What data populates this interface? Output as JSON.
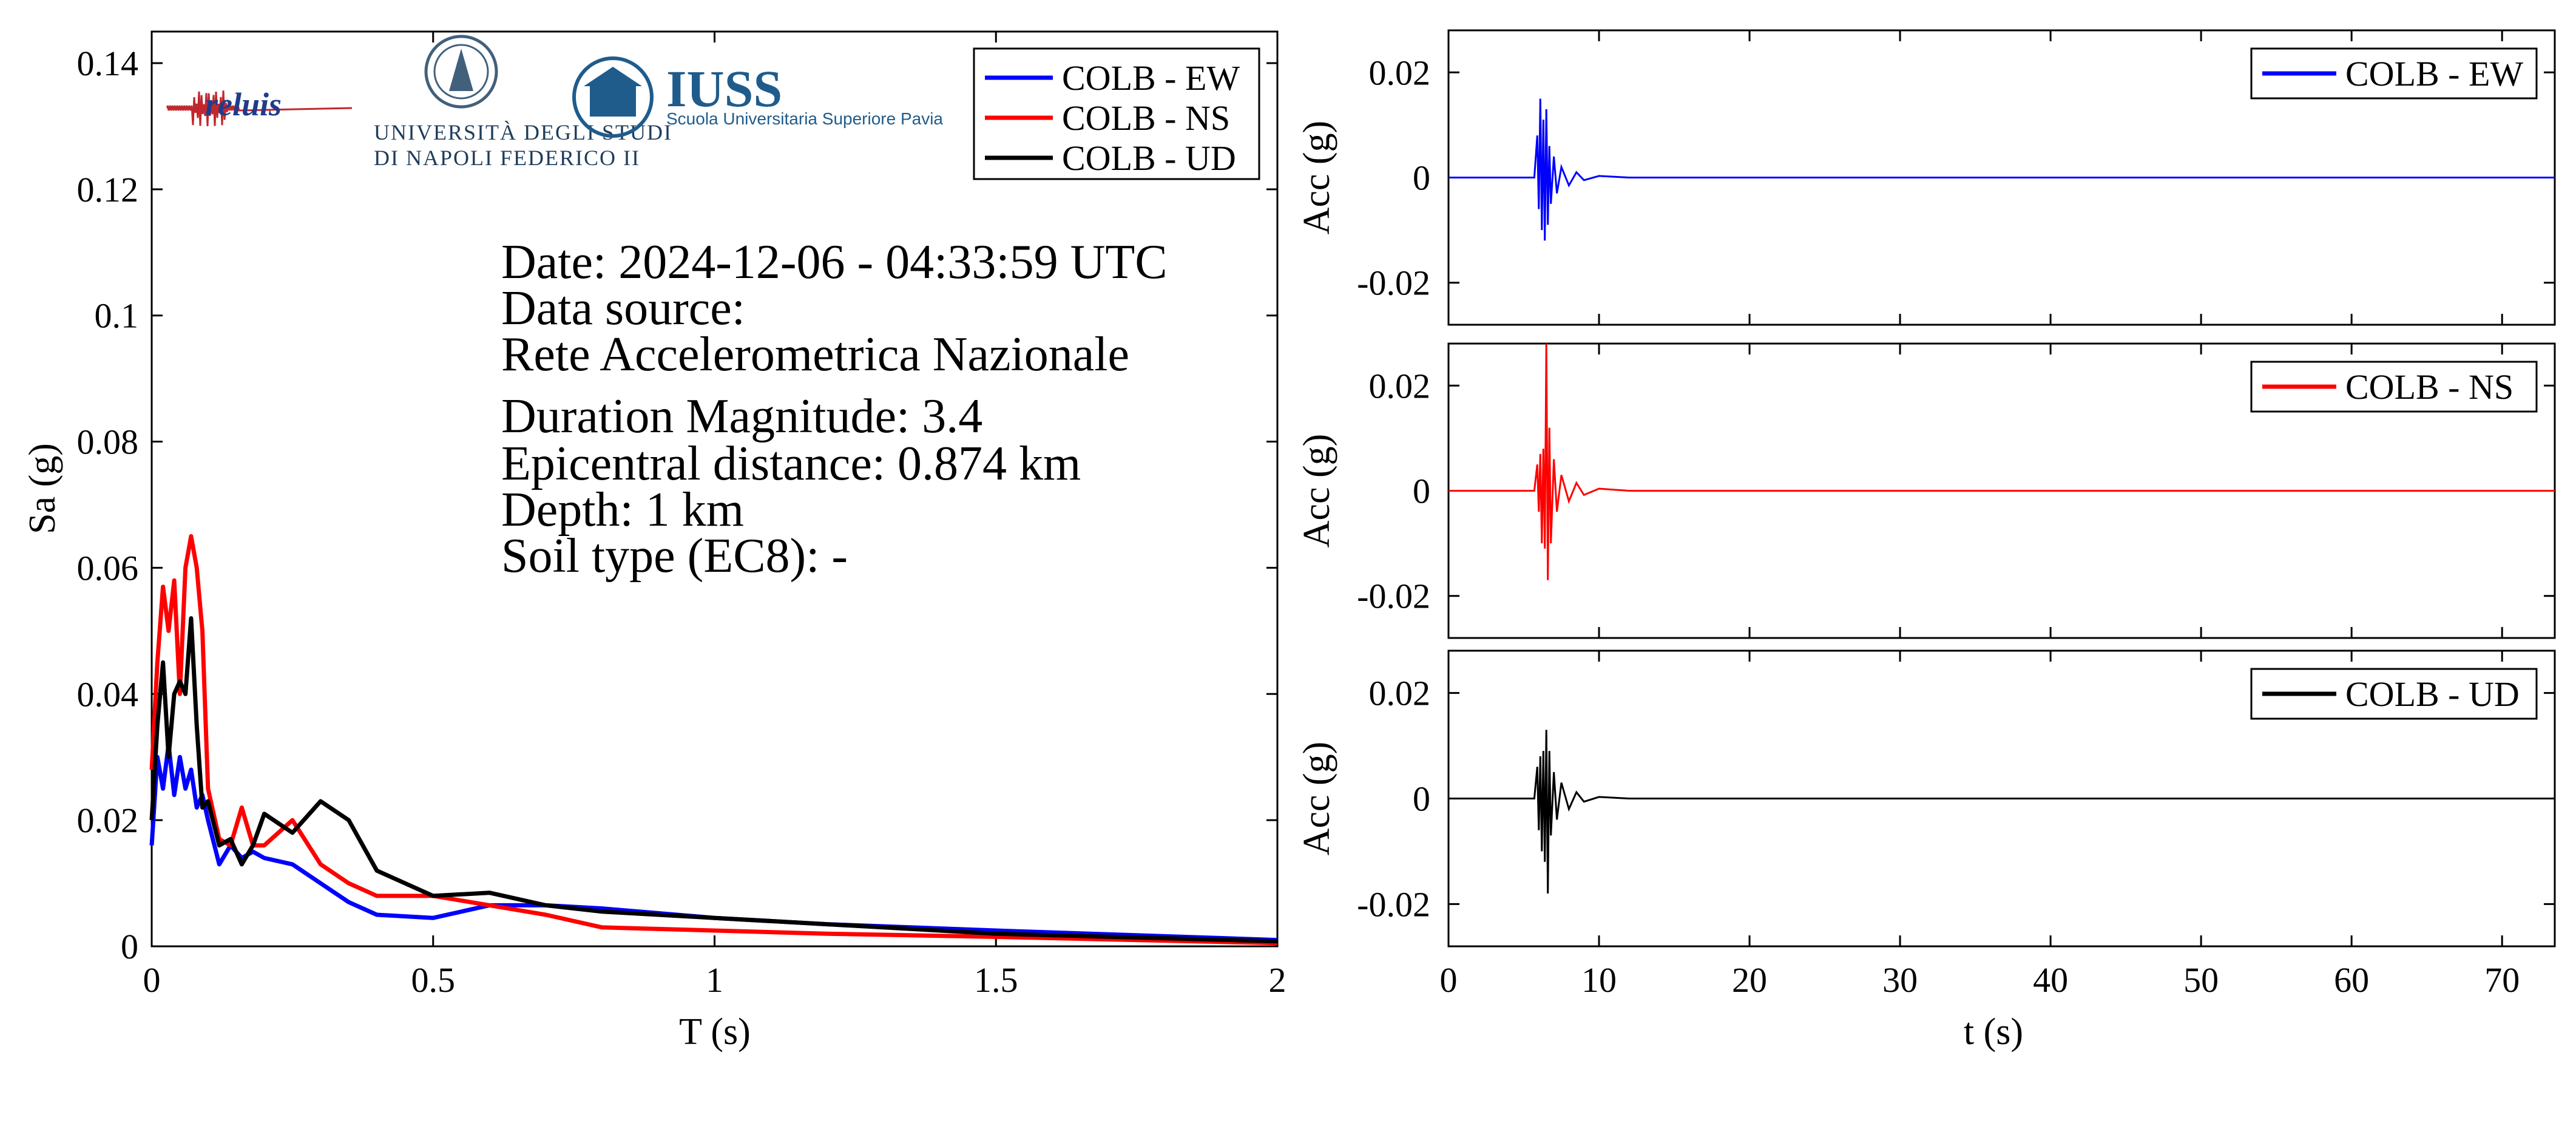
{
  "logos": {
    "reluis": "reluis",
    "unina_line1": "UNIVERSITÀ DEGLI STUDI",
    "unina_line2": "DI NAPOLI FEDERICO II",
    "iuss_title": "IUSS",
    "iuss_subtitle": "Scuola Universitaria Superiore Pavia"
  },
  "info": {
    "lines": [
      "Date: 2024-12-06 - 04:33:59 UTC",
      "Data source:",
      "Rete Accelerometrica Nazionale",
      "Duration Magnitude: 3.4",
      "Epicentral distance: 0.874 km",
      "Depth: 1 km",
      "Soil type (EC8): -"
    ]
  },
  "colors": {
    "EW": "#0000ff",
    "NS": "#ff0000",
    "UD": "#000000"
  },
  "chart_data": [
    {
      "type": "line",
      "xlabel": "T (s)",
      "ylabel": "Sa (g)",
      "xlim": [
        0,
        2
      ],
      "ylim": [
        0,
        0.145
      ],
      "xticks": [
        0,
        0.5,
        1,
        1.5,
        2
      ],
      "xtick_labels": [
        "0",
        "0.5",
        "1",
        "1.5",
        "2"
      ],
      "yticks": [
        0,
        0.02,
        0.04,
        0.06,
        0.08,
        0.1,
        0.12,
        0.14
      ],
      "ytick_labels": [
        "0",
        "0.02",
        "0.04",
        "0.06",
        "0.08",
        "0.1",
        "0.12",
        "0.14"
      ],
      "legend_position": "top-right",
      "series": [
        {
          "name": "COLB - EW",
          "color": "#0000ff",
          "x": [
            0,
            0.01,
            0.02,
            0.03,
            0.04,
            0.05,
            0.06,
            0.07,
            0.08,
            0.09,
            0.1,
            0.12,
            0.14,
            0.16,
            0.18,
            0.2,
            0.25,
            0.3,
            0.35,
            0.4,
            0.5,
            0.6,
            0.7,
            0.8,
            1.0,
            1.2,
            1.5,
            2.0
          ],
          "y": [
            0.016,
            0.03,
            0.025,
            0.032,
            0.024,
            0.03,
            0.025,
            0.028,
            0.022,
            0.024,
            0.02,
            0.013,
            0.016,
            0.014,
            0.015,
            0.014,
            0.013,
            0.01,
            0.007,
            0.005,
            0.0045,
            0.0065,
            0.0065,
            0.006,
            0.0045,
            0.0035,
            0.0025,
            0.001
          ]
        },
        {
          "name": "COLB - NS",
          "color": "#ff0000",
          "x": [
            0,
            0.01,
            0.02,
            0.03,
            0.04,
            0.05,
            0.06,
            0.07,
            0.08,
            0.09,
            0.1,
            0.12,
            0.14,
            0.16,
            0.18,
            0.2,
            0.25,
            0.3,
            0.35,
            0.4,
            0.5,
            0.6,
            0.7,
            0.8,
            1.0,
            1.2,
            1.5,
            2.0
          ],
          "y": [
            0.028,
            0.045,
            0.057,
            0.05,
            0.058,
            0.04,
            0.06,
            0.065,
            0.06,
            0.05,
            0.025,
            0.017,
            0.016,
            0.022,
            0.016,
            0.016,
            0.02,
            0.013,
            0.01,
            0.008,
            0.008,
            0.0065,
            0.005,
            0.003,
            0.0025,
            0.002,
            0.0015,
            0.0005
          ]
        },
        {
          "name": "COLB - UD",
          "color": "#000000",
          "x": [
            0,
            0.01,
            0.02,
            0.03,
            0.04,
            0.05,
            0.06,
            0.07,
            0.08,
            0.09,
            0.1,
            0.12,
            0.14,
            0.16,
            0.18,
            0.2,
            0.25,
            0.3,
            0.35,
            0.4,
            0.5,
            0.6,
            0.7,
            0.8,
            1.0,
            1.2,
            1.5,
            2.0
          ],
          "y": [
            0.02,
            0.035,
            0.045,
            0.03,
            0.04,
            0.042,
            0.04,
            0.052,
            0.035,
            0.022,
            0.023,
            0.016,
            0.017,
            0.013,
            0.016,
            0.021,
            0.018,
            0.023,
            0.02,
            0.012,
            0.008,
            0.0085,
            0.0065,
            0.0055,
            0.0045,
            0.0035,
            0.002,
            0.0008
          ]
        }
      ]
    },
    {
      "type": "line",
      "xlabel": "",
      "ylabel": "Acc (g)",
      "xlim": [
        0,
        73.5
      ],
      "ylim": [
        -0.028,
        0.028
      ],
      "yticks": [
        -0.02,
        0,
        0.02
      ],
      "ytick_labels": [
        "-0.02",
        "0",
        "0.02"
      ],
      "legend_position": "top-right",
      "series": [
        {
          "name": "COLB - EW",
          "color": "#0000ff",
          "x": [
            0,
            5.7,
            5.9,
            6.0,
            6.1,
            6.2,
            6.3,
            6.4,
            6.5,
            6.6,
            6.7,
            6.8,
            7.0,
            7.2,
            7.5,
            8.0,
            8.5,
            9.0,
            10,
            12,
            73.5
          ],
          "y": [
            0,
            0,
            0.008,
            -0.006,
            0.015,
            -0.01,
            0.011,
            -0.012,
            0.013,
            -0.009,
            0.006,
            -0.005,
            0.004,
            -0.003,
            0.002,
            -0.0015,
            0.001,
            -0.0005,
            0.0003,
            0,
            0
          ]
        },
        {
          "name": "COLB - NS",
          "color": "#ff0000",
          "x": [
            0,
            5.7,
            5.9,
            6.0,
            6.1,
            6.2,
            6.3,
            6.4,
            6.5,
            6.6,
            6.7,
            6.8,
            7.0,
            7.2,
            7.5,
            8.0,
            8.5,
            9.0,
            10,
            12,
            73.5
          ],
          "y": [
            0,
            0,
            0.005,
            -0.004,
            0.007,
            -0.01,
            0.008,
            -0.011,
            0.028,
            -0.017,
            0.012,
            -0.01,
            0.006,
            -0.004,
            0.003,
            -0.002,
            0.0015,
            -0.0008,
            0.0004,
            0,
            0
          ]
        },
        {
          "name": "COLB - UD",
          "color": "#000000",
          "x": [
            0,
            5.7,
            5.9,
            6.0,
            6.1,
            6.2,
            6.3,
            6.4,
            6.5,
            6.6,
            6.7,
            6.8,
            7.0,
            7.2,
            7.5,
            8.0,
            8.5,
            9.0,
            10,
            12,
            73.5
          ],
          "y": [
            0,
            0,
            0.006,
            -0.006,
            0.008,
            -0.01,
            0.009,
            -0.012,
            0.013,
            -0.018,
            0.009,
            -0.007,
            0.005,
            -0.004,
            0.003,
            -0.002,
            0.0012,
            -0.0006,
            0.0003,
            0,
            0
          ]
        }
      ],
      "shared_x_axis": {
        "label": "t (s)",
        "ticks": [
          0,
          10,
          20,
          30,
          40,
          50,
          60,
          70
        ],
        "tick_labels": [
          "0",
          "10",
          "20",
          "30",
          "40",
          "50",
          "60",
          "70"
        ]
      }
    }
  ]
}
